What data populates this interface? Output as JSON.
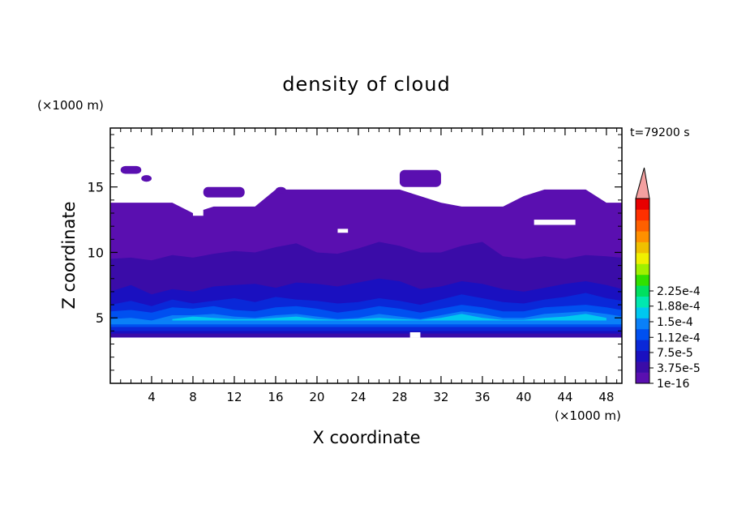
{
  "chart_data": {
    "type": "heatmap",
    "title": "density of cloud",
    "xlabel": "X coordinate",
    "ylabel": "Z coordinate",
    "x_unit": "(×1000 m)",
    "y_unit": "(×1000 m)",
    "time_label": "t=79200 s",
    "xlim": [
      0,
      49.5
    ],
    "ylim": [
      0,
      19.5
    ],
    "x_ticks": [
      4,
      8,
      12,
      16,
      20,
      24,
      28,
      32,
      36,
      40,
      44,
      48
    ],
    "x_tick_labels": [
      "4",
      "8",
      "12",
      "16",
      "20",
      "24",
      "28",
      "32",
      "36",
      "40",
      "44",
      "48"
    ],
    "y_ticks": [
      5,
      10,
      15
    ],
    "y_tick_labels": [
      "5",
      "10",
      "15"
    ],
    "colorbar": {
      "colors": [
        "#5a0fb0",
        "#3a0ca8",
        "#1a10c0",
        "#0a28d8",
        "#0050f0",
        "#0a80f8",
        "#00c8f0",
        "#00e8b0",
        "#00e060",
        "#30e000",
        "#a0f000",
        "#f0f000",
        "#f0c000",
        "#ff9000",
        "#ff6000",
        "#ff3000",
        "#e80000"
      ],
      "overflow_color": "#f4a0a0",
      "tick_values": [
        1e-16,
        3.75e-05,
        7.5e-05,
        0.000112,
        0.00015,
        0.000188,
        0.000225
      ],
      "tick_labels": [
        "1e-16",
        "3.75e-5",
        "7.5e-5",
        "1.12e-4",
        "1.5e-4",
        "1.88e-4",
        "2.25e-4"
      ]
    },
    "regions": [
      {
        "level": 1,
        "x": [
          0,
          2,
          4,
          6,
          8,
          10,
          12,
          14,
          16,
          18,
          20,
          22,
          24,
          26,
          28,
          30,
          32,
          34,
          36,
          38,
          40,
          42,
          44,
          46,
          48,
          49.5
        ],
        "bottom": [
          3.5,
          3.5,
          3.5,
          3.5,
          3.5,
          3.5,
          3.5,
          3.5,
          3.5,
          3.5,
          3.5,
          3.5,
          3.5,
          3.5,
          3.5,
          3.5,
          3.5,
          3.5,
          3.5,
          3.5,
          3.5,
          3.5,
          3.5,
          3.5,
          3.5,
          3.5
        ],
        "top": [
          13.8,
          13.8,
          13.8,
          13.8,
          13.0,
          13.5,
          13.5,
          13.5,
          14.8,
          14.8,
          14.8,
          14.8,
          14.8,
          14.8,
          14.8,
          14.3,
          13.8,
          13.5,
          13.5,
          13.5,
          14.3,
          14.8,
          14.8,
          14.8,
          13.8,
          13.8
        ]
      },
      {
        "level": 2,
        "x": [
          0,
          2,
          4,
          6,
          8,
          10,
          12,
          14,
          16,
          18,
          20,
          22,
          24,
          26,
          28,
          30,
          32,
          34,
          36,
          38,
          40,
          42,
          44,
          46,
          48,
          49.5
        ],
        "bottom": [
          3.5,
          3.5,
          3.5,
          3.5,
          3.5,
          3.5,
          3.5,
          3.5,
          3.5,
          3.5,
          3.5,
          3.5,
          3.5,
          3.5,
          3.5,
          3.5,
          3.5,
          3.5,
          3.5,
          3.5,
          3.5,
          3.5,
          3.5,
          3.5,
          3.5,
          3.5
        ],
        "top": [
          9.5,
          9.6,
          9.4,
          9.8,
          9.6,
          9.9,
          10.1,
          10.0,
          10.4,
          10.7,
          10.0,
          9.9,
          10.3,
          10.8,
          10.5,
          10.0,
          10.0,
          10.5,
          10.8,
          9.7,
          9.5,
          9.7,
          9.5,
          9.8,
          9.7,
          9.6
        ]
      },
      {
        "level": 3,
        "x": [
          0,
          2,
          4,
          6,
          8,
          10,
          12,
          14,
          16,
          18,
          20,
          22,
          24,
          26,
          28,
          30,
          32,
          34,
          36,
          38,
          40,
          42,
          44,
          46,
          48,
          49.5
        ],
        "bottom": [
          3.8,
          3.8,
          3.8,
          3.8,
          3.8,
          3.8,
          3.8,
          3.8,
          3.8,
          3.8,
          3.8,
          3.8,
          3.8,
          3.8,
          3.8,
          3.8,
          3.8,
          3.8,
          3.8,
          3.8,
          3.8,
          3.8,
          3.8,
          3.8,
          3.8,
          3.8
        ],
        "top": [
          7.0,
          7.5,
          6.8,
          7.2,
          7.0,
          7.4,
          7.5,
          7.6,
          7.3,
          7.7,
          7.6,
          7.4,
          7.7,
          8.0,
          7.8,
          7.2,
          7.4,
          7.8,
          7.6,
          7.2,
          7.0,
          7.3,
          7.6,
          7.8,
          7.5,
          7.2
        ]
      },
      {
        "level": 4,
        "x": [
          0,
          2,
          4,
          6,
          8,
          10,
          12,
          14,
          16,
          18,
          20,
          22,
          24,
          26,
          28,
          30,
          32,
          34,
          36,
          38,
          40,
          42,
          44,
          46,
          48,
          49.5
        ],
        "bottom": [
          4.0,
          4.0,
          4.0,
          4.0,
          4.0,
          4.0,
          4.0,
          4.0,
          4.0,
          4.0,
          4.0,
          4.0,
          4.0,
          4.0,
          4.0,
          4.0,
          4.0,
          4.0,
          4.0,
          4.0,
          4.0,
          4.0,
          4.0,
          4.0,
          4.0,
          4.0
        ],
        "top": [
          6.0,
          6.3,
          5.9,
          6.4,
          6.1,
          6.3,
          6.5,
          6.2,
          6.6,
          6.4,
          6.3,
          6.1,
          6.2,
          6.5,
          6.3,
          6.0,
          6.4,
          6.8,
          6.5,
          6.2,
          6.1,
          6.4,
          6.6,
          6.9,
          6.5,
          6.3
        ]
      },
      {
        "level": 5,
        "x": [
          0,
          2,
          4,
          6,
          8,
          10,
          12,
          14,
          16,
          18,
          20,
          22,
          24,
          26,
          28,
          30,
          32,
          34,
          36,
          38,
          40,
          42,
          44,
          46,
          48,
          49.5
        ],
        "bottom": [
          4.3,
          4.3,
          4.3,
          4.3,
          4.3,
          4.3,
          4.3,
          4.3,
          4.3,
          4.3,
          4.3,
          4.3,
          4.3,
          4.3,
          4.3,
          4.3,
          4.3,
          4.3,
          4.3,
          4.3,
          4.3,
          4.3,
          4.3,
          4.3,
          4.3,
          4.3
        ],
        "top": [
          5.5,
          5.6,
          5.4,
          5.8,
          5.7,
          5.9,
          5.6,
          5.5,
          5.8,
          5.9,
          5.7,
          5.4,
          5.6,
          5.9,
          5.7,
          5.4,
          5.7,
          6.0,
          5.8,
          5.5,
          5.5,
          5.8,
          5.9,
          6.0,
          5.8,
          5.6
        ]
      },
      {
        "level": 6,
        "x": [
          0,
          2,
          4,
          6,
          8,
          10,
          12,
          14,
          16,
          18,
          20,
          22,
          24,
          26,
          28,
          30,
          32,
          34,
          36,
          38,
          40,
          42,
          44,
          46,
          48,
          49.5
        ],
        "bottom": [
          4.5,
          4.5,
          4.5,
          4.5,
          4.5,
          4.5,
          4.5,
          4.5,
          4.5,
          4.5,
          4.5,
          4.5,
          4.5,
          4.5,
          4.5,
          4.5,
          4.5,
          4.5,
          4.5,
          4.5,
          4.5,
          4.5,
          4.5,
          4.5,
          4.5,
          4.5
        ],
        "top": [
          4.9,
          5.0,
          4.8,
          5.2,
          5.2,
          5.3,
          5.1,
          5.0,
          5.2,
          5.3,
          5.1,
          4.9,
          5.0,
          5.3,
          5.1,
          4.9,
          5.2,
          5.5,
          5.3,
          5.0,
          5.0,
          5.3,
          5.4,
          5.5,
          5.3,
          5.1
        ]
      },
      {
        "level": 7,
        "x": [
          6,
          8,
          10,
          12,
          14,
          16,
          18,
          20,
          22,
          24,
          26,
          28,
          30,
          32,
          34,
          36,
          38,
          40,
          42,
          44,
          46,
          48
        ],
        "bottom": [
          4.8,
          4.8,
          4.8,
          4.8,
          4.8,
          4.8,
          4.8,
          4.8,
          4.8,
          4.8,
          4.8,
          4.8,
          4.8,
          4.8,
          4.8,
          4.8,
          4.8,
          4.8,
          4.8,
          4.8,
          4.8,
          4.8
        ],
        "top": [
          4.9,
          5.1,
          5.0,
          4.9,
          4.9,
          5.0,
          5.1,
          4.9,
          4.85,
          4.9,
          5.0,
          4.9,
          4.85,
          5.0,
          5.3,
          5.0,
          4.85,
          4.85,
          5.0,
          5.1,
          5.3,
          5.0
        ]
      }
    ],
    "upper_patches": [
      {
        "x": [
          1,
          3
        ],
        "z": [
          16.0,
          16.6
        ]
      },
      {
        "x": [
          3,
          4
        ],
        "z": [
          15.4,
          15.9
        ]
      },
      {
        "x": [
          9,
          13
        ],
        "z": [
          14.2,
          15.0
        ]
      },
      {
        "x": [
          16,
          17
        ],
        "z": [
          14.5,
          15.0
        ]
      },
      {
        "x": [
          28,
          32
        ],
        "z": [
          15.0,
          16.3
        ]
      }
    ],
    "gaps": [
      {
        "x": [
          8,
          9
        ],
        "z": [
          12.8,
          13.7
        ]
      },
      {
        "x": [
          22,
          23
        ],
        "z": [
          11.5,
          11.8
        ]
      },
      {
        "x": [
          41,
          45
        ],
        "z": [
          12.1,
          12.5
        ]
      },
      {
        "x": [
          29,
          30
        ],
        "z": [
          3.5,
          3.9
        ]
      }
    ]
  }
}
